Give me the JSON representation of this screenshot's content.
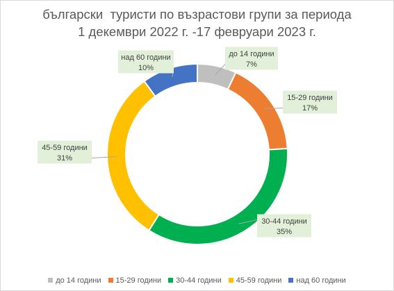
{
  "chart_data": {
    "type": "pie",
    "title_lines": [
      "български  туристи по възрастови групи за периода",
      "1 декември 2022 г. -17 февруари 2023 г."
    ],
    "categories": [
      "до 14 години",
      "15-29 години",
      "30-44 години",
      "45-59 години",
      "над 60 години"
    ],
    "values": [
      7,
      17,
      35,
      31,
      10
    ],
    "value_labels": [
      "7%",
      "17%",
      "35%",
      "31%",
      "10%"
    ],
    "colors": [
      "#bfbfbf",
      "#ed7d31",
      "#00b050",
      "#ffc000",
      "#4472c4"
    ],
    "data_label_background": "#e2f0d9",
    "legend_position": "bottom"
  }
}
